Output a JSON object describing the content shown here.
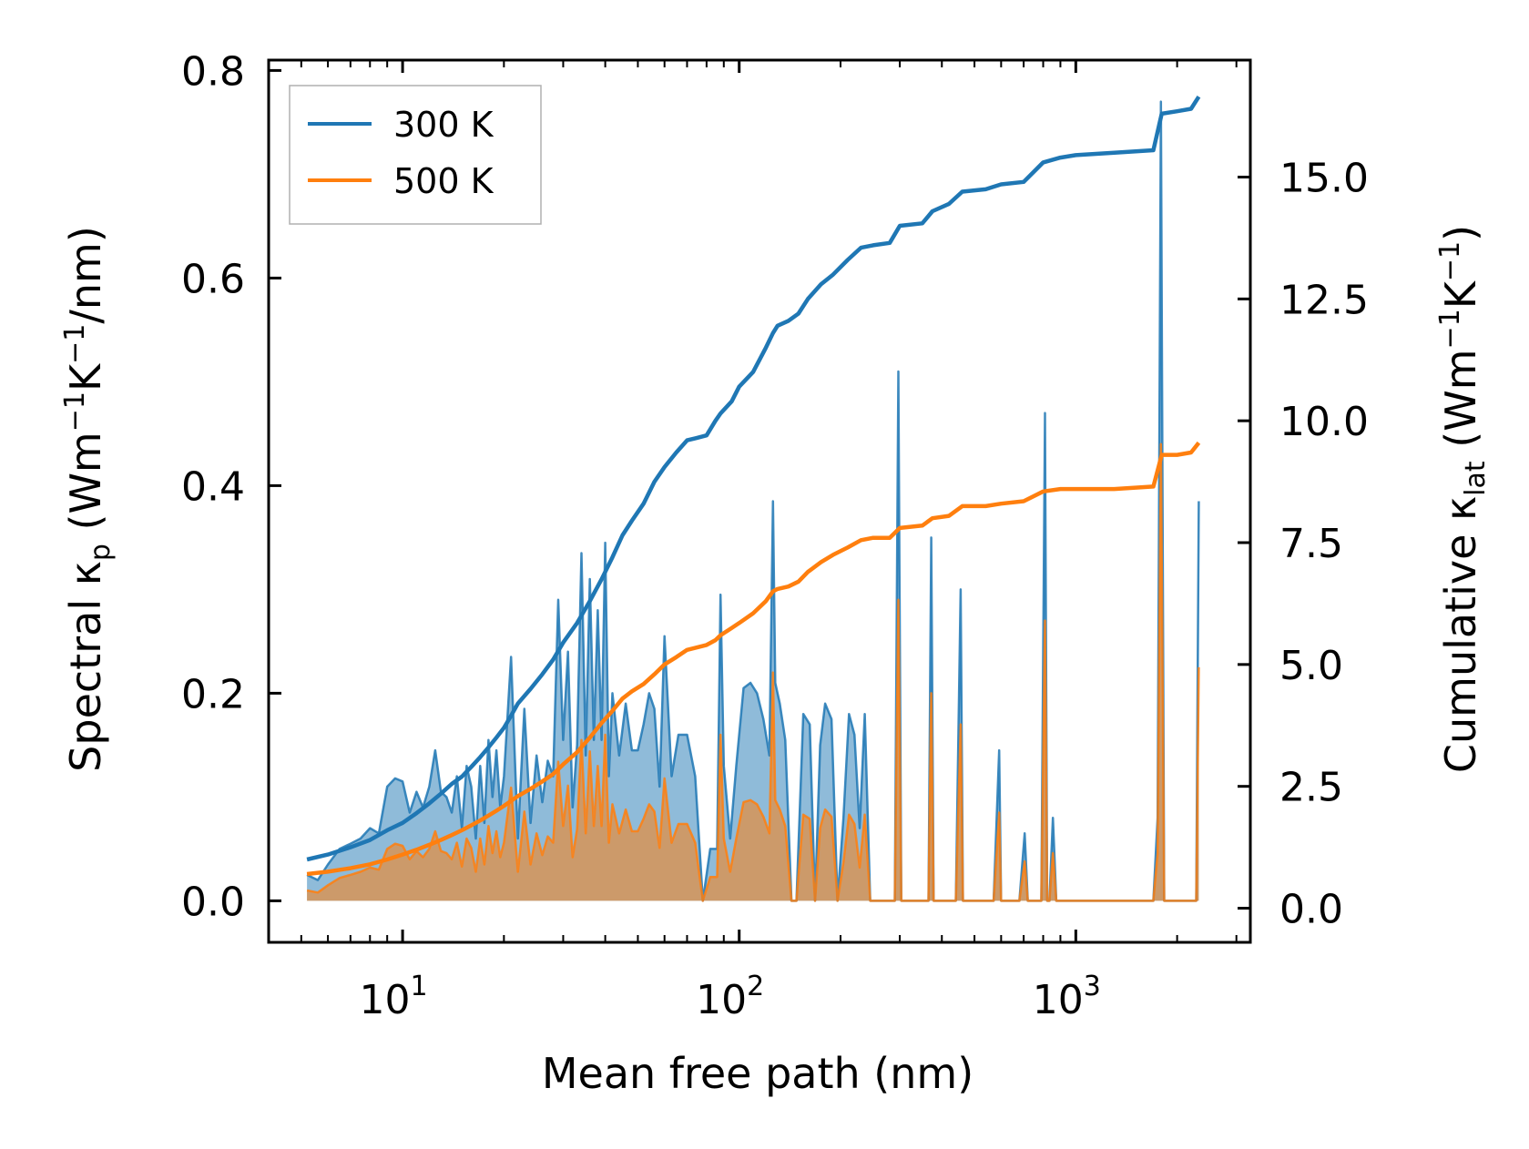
{
  "chart_data": {
    "type": "line",
    "x_scale": "log",
    "xlabel": "Mean free path (nm)",
    "ylabel_left": {
      "base": "Spectral κ",
      "sub": "p",
      "unit_pre": " (Wm",
      "exp1": "−1",
      "unit_mid": "K",
      "exp2": "−1",
      "unit_post": "/nm)"
    },
    "ylabel_right": {
      "base": "Cumulative κ",
      "sub": "lat",
      "unit_pre": " (Wm",
      "exp1": "−1",
      "unit_mid": "K",
      "exp2": "−1",
      "unit_post": ")"
    },
    "xlim": [
      4.0,
      3300
    ],
    "ylim_left": [
      -0.04,
      0.81
    ],
    "ylim_right": [
      -0.7,
      17.4
    ],
    "x_ticks": [
      {
        "value": 10,
        "base": "10",
        "exp": "1"
      },
      {
        "value": 100,
        "base": "10",
        "exp": "2"
      },
      {
        "value": 1000,
        "base": "10",
        "exp": "3"
      }
    ],
    "y_left_ticks": [
      {
        "value": 0.0,
        "label": "0.0"
      },
      {
        "value": 0.2,
        "label": "0.2"
      },
      {
        "value": 0.4,
        "label": "0.4"
      },
      {
        "value": 0.6,
        "label": "0.6"
      },
      {
        "value": 0.8,
        "label": "0.8"
      }
    ],
    "y_right_ticks": [
      {
        "value": 0.0,
        "label": "0.0"
      },
      {
        "value": 2.5,
        "label": "2.5"
      },
      {
        "value": 5.0,
        "label": "5.0"
      },
      {
        "value": 7.5,
        "label": "7.5"
      },
      {
        "value": 10.0,
        "label": "10.0"
      },
      {
        "value": 12.5,
        "label": "12.5"
      },
      {
        "value": 15.0,
        "label": "15.0"
      }
    ],
    "legend": {
      "position": "top-left",
      "entries": [
        "300 K",
        "500 K"
      ]
    },
    "colors": {
      "300K": "#1f77b4",
      "500K": "#ff7f0e",
      "fill300": "#1f77b4",
      "fill500": "#ff7f0e"
    },
    "spectral_series": [
      {
        "name": "300 K spectral",
        "x": [
          5.2,
          5.6,
          6.0,
          6.5,
          7.0,
          7.5,
          8.0,
          8.5,
          9.0,
          9.5,
          10.0,
          10.5,
          11.0,
          11.5,
          12.0,
          12.5,
          13.0,
          13.5,
          14.0,
          14.5,
          15.0,
          15.5,
          16.0,
          16.5,
          17.0,
          17.5,
          18.0,
          18.5,
          19.0,
          19.5,
          20.0,
          21.0,
          22.0,
          23.0,
          24.0,
          25.0,
          26.0,
          27.0,
          28.0,
          29.0,
          30.0,
          31.0,
          32.0,
          33.0,
          34.0,
          35.0,
          36.0,
          37.0,
          38.0,
          39.0,
          40.0,
          41.0,
          42.0,
          44.0,
          46.0,
          48.0,
          50.0,
          52.0,
          54.0,
          56.0,
          58.0,
          60.0,
          63.0,
          66.0,
          70.0,
          74.0,
          78.0,
          82.0,
          86.0,
          88.0,
          90.0,
          94.0,
          98.0,
          103.0,
          108.0,
          113.0,
          118.0,
          123.0,
          126.0,
          128.0,
          132.0,
          137.0,
          143.0,
          148.0,
          155.0,
          162.0,
          168.0,
          174.0,
          180.0,
          188.0,
          196.0,
          204.0,
          212.0,
          220.0,
          228.0,
          236.0,
          245.0,
          255.0,
          265.0,
          280.0,
          290.0,
          297.0,
          303.0,
          310.0,
          330.0,
          365.0,
          372.0,
          378.0,
          385.0,
          400.0,
          440.0,
          455.0,
          462.0,
          470.0,
          490.0,
          570.0,
          592.0,
          600.0,
          610.0,
          680.0,
          705.0,
          720.0,
          760.0,
          790.0,
          810.0,
          822.0,
          835.0,
          855.0,
          875.0,
          895.0,
          930.0,
          1000.0,
          1200.0,
          1500.0,
          1650.0,
          1700.0,
          1750.0,
          1790.0,
          1830.0,
          1870.0,
          2000.0,
          2200.0,
          2280.0,
          2320.0
        ],
        "y": [
          0.025,
          0.02,
          0.035,
          0.05,
          0.055,
          0.06,
          0.07,
          0.065,
          0.11,
          0.118,
          0.115,
          0.085,
          0.105,
          0.09,
          0.11,
          0.145,
          0.105,
          0.1,
          0.085,
          0.12,
          0.07,
          0.13,
          0.11,
          0.06,
          0.13,
          0.075,
          0.155,
          0.1,
          0.145,
          0.09,
          0.12,
          0.235,
          0.06,
          0.185,
          0.075,
          0.14,
          0.095,
          0.135,
          0.12,
          0.29,
          0.155,
          0.24,
          0.09,
          0.15,
          0.335,
          0.14,
          0.31,
          0.155,
          0.28,
          0.155,
          0.345,
          0.12,
          0.2,
          0.14,
          0.19,
          0.145,
          0.145,
          0.17,
          0.2,
          0.185,
          0.11,
          0.255,
          0.12,
          0.16,
          0.16,
          0.12,
          0.0,
          0.05,
          0.05,
          0.295,
          0.13,
          0.06,
          0.13,
          0.205,
          0.21,
          0.2,
          0.175,
          0.14,
          0.385,
          0.21,
          0.19,
          0.155,
          0.0,
          0.0,
          0.18,
          0.17,
          0.0,
          0.15,
          0.19,
          0.175,
          0.0,
          0.08,
          0.18,
          0.16,
          0.07,
          0.18,
          0.0,
          0.0,
          0.0,
          0.0,
          0.0,
          0.51,
          0.0,
          0.0,
          0.0,
          0.0,
          0.35,
          0.0,
          0.0,
          0.0,
          0.0,
          0.3,
          0.0,
          0.0,
          0.0,
          0.0,
          0.145,
          0.0,
          0.0,
          0.0,
          0.065,
          0.0,
          0.0,
          0.0,
          0.47,
          0.0,
          0.0,
          0.08,
          0.0,
          0.0,
          0.0,
          0.0,
          0.0,
          0.0,
          0.0,
          0.0,
          0.08,
          0.77,
          0.0,
          0.0,
          0.0,
          0.0,
          0.0,
          0.385
        ]
      },
      {
        "name": "500 K spectral",
        "x": [
          5.2,
          5.6,
          6.0,
          6.5,
          7.0,
          7.5,
          8.0,
          8.5,
          9.0,
          9.5,
          10.0,
          10.5,
          11.0,
          11.5,
          12.0,
          12.5,
          13.0,
          13.5,
          14.0,
          14.5,
          15.0,
          15.5,
          16.0,
          16.5,
          17.0,
          17.5,
          18.0,
          18.5,
          19.0,
          19.5,
          20.0,
          21.0,
          22.0,
          23.0,
          24.0,
          25.0,
          26.0,
          27.0,
          28.0,
          29.0,
          30.0,
          31.0,
          32.0,
          33.0,
          34.0,
          35.0,
          36.0,
          37.0,
          38.0,
          39.0,
          40.0,
          41.0,
          42.0,
          44.0,
          46.0,
          48.0,
          50.0,
          52.0,
          54.0,
          56.0,
          58.0,
          60.0,
          63.0,
          66.0,
          70.0,
          74.0,
          78.0,
          82.0,
          86.0,
          88.0,
          90.0,
          94.0,
          98.0,
          103.0,
          108.0,
          113.0,
          118.0,
          123.0,
          126.0,
          128.0,
          132.0,
          137.0,
          143.0,
          148.0,
          155.0,
          162.0,
          168.0,
          174.0,
          180.0,
          188.0,
          196.0,
          204.0,
          212.0,
          220.0,
          228.0,
          236.0,
          245.0,
          255.0,
          265.0,
          280.0,
          290.0,
          297.0,
          303.0,
          310.0,
          330.0,
          365.0,
          372.0,
          378.0,
          385.0,
          400.0,
          440.0,
          455.0,
          462.0,
          470.0,
          490.0,
          570.0,
          592.0,
          600.0,
          610.0,
          680.0,
          705.0,
          720.0,
          760.0,
          790.0,
          810.0,
          822.0,
          835.0,
          855.0,
          875.0,
          895.0,
          930.0,
          1000.0,
          1200.0,
          1500.0,
          1650.0,
          1700.0,
          1750.0,
          1790.0,
          1830.0,
          1870.0,
          2000.0,
          2200.0,
          2280.0,
          2320.0
        ],
        "y": [
          0.01,
          0.008,
          0.015,
          0.022,
          0.025,
          0.028,
          0.032,
          0.03,
          0.05,
          0.055,
          0.053,
          0.04,
          0.048,
          0.042,
          0.05,
          0.067,
          0.048,
          0.046,
          0.04,
          0.056,
          0.033,
          0.06,
          0.051,
          0.028,
          0.06,
          0.035,
          0.072,
          0.046,
          0.067,
          0.042,
          0.056,
          0.109,
          0.028,
          0.086,
          0.035,
          0.065,
          0.044,
          0.062,
          0.056,
          0.134,
          0.072,
          0.111,
          0.042,
          0.069,
          0.155,
          0.065,
          0.144,
          0.072,
          0.13,
          0.072,
          0.16,
          0.056,
          0.093,
          0.065,
          0.088,
          0.067,
          0.067,
          0.079,
          0.093,
          0.086,
          0.051,
          0.118,
          0.056,
          0.074,
          0.074,
          0.056,
          0.0,
          0.023,
          0.023,
          0.16,
          0.06,
          0.028,
          0.06,
          0.095,
          0.097,
          0.093,
          0.081,
          0.065,
          0.22,
          0.097,
          0.088,
          0.072,
          0.0,
          0.0,
          0.083,
          0.079,
          0.0,
          0.07,
          0.088,
          0.081,
          0.0,
          0.037,
          0.083,
          0.074,
          0.032,
          0.083,
          0.0,
          0.0,
          0.0,
          0.0,
          0.0,
          0.29,
          0.0,
          0.0,
          0.0,
          0.0,
          0.2,
          0.0,
          0.0,
          0.0,
          0.0,
          0.17,
          0.0,
          0.0,
          0.0,
          0.0,
          0.085,
          0.0,
          0.0,
          0.0,
          0.038,
          0.0,
          0.0,
          0.0,
          0.27,
          0.0,
          0.0,
          0.046,
          0.0,
          0.0,
          0.0,
          0.0,
          0.0,
          0.0,
          0.0,
          0.0,
          0.046,
          0.44,
          0.0,
          0.0,
          0.0,
          0.0,
          0.0,
          0.225
        ]
      }
    ],
    "cumulative_series": [
      {
        "name": "300 K",
        "x": [
          5.2,
          6.0,
          7.0,
          8.0,
          9.0,
          10.0,
          11.0,
          12.0,
          13.0,
          14.0,
          15.0,
          16.0,
          17.0,
          18.0,
          19.0,
          20.0,
          21.0,
          22.0,
          24.0,
          26.0,
          28.0,
          30.0,
          33.0,
          36.0,
          39.0,
          42.0,
          45.0,
          48.0,
          52.0,
          56.0,
          60.0,
          65.0,
          70.0,
          75.0,
          80.0,
          85.0,
          88.0,
          95.0,
          100.0,
          110.0,
          120.0,
          126.0,
          130.0,
          140.0,
          150.0,
          160.0,
          175.0,
          190.0,
          210.0,
          230.0,
          250.0,
          280.0,
          300.0,
          350.0,
          375.0,
          420.0,
          460.0,
          540.0,
          600.0,
          700.0,
          800.0,
          900.0,
          1000.0,
          1300.0,
          1700.0,
          1800.0,
          2000.0,
          2200.0,
          2320.0
        ],
        "y": [
          1.0,
          1.1,
          1.25,
          1.4,
          1.6,
          1.75,
          1.95,
          2.15,
          2.35,
          2.55,
          2.7,
          2.9,
          3.1,
          3.3,
          3.5,
          3.7,
          3.95,
          4.2,
          4.5,
          4.8,
          5.1,
          5.45,
          5.85,
          6.3,
          6.75,
          7.2,
          7.65,
          7.95,
          8.3,
          8.75,
          9.05,
          9.35,
          9.6,
          9.65,
          9.7,
          10.0,
          10.15,
          10.4,
          10.7,
          11.0,
          11.5,
          11.8,
          11.95,
          12.05,
          12.2,
          12.5,
          12.8,
          13.0,
          13.3,
          13.55,
          13.6,
          13.65,
          14.0,
          14.05,
          14.3,
          14.45,
          14.7,
          14.75,
          14.85,
          14.9,
          15.3,
          15.4,
          15.45,
          15.5,
          15.55,
          16.3,
          16.35,
          16.4,
          16.65
        ]
      },
      {
        "name": "500 K",
        "x": [
          5.2,
          6.0,
          7.0,
          8.0,
          9.0,
          10.0,
          11.0,
          12.0,
          13.0,
          14.0,
          15.0,
          16.0,
          17.0,
          18.0,
          19.0,
          20.0,
          21.0,
          22.0,
          24.0,
          26.0,
          28.0,
          30.0,
          33.0,
          36.0,
          39.0,
          42.0,
          45.0,
          48.0,
          52.0,
          56.0,
          60.0,
          65.0,
          70.0,
          75.0,
          80.0,
          85.0,
          88.0,
          95.0,
          100.0,
          110.0,
          120.0,
          126.0,
          130.0,
          140.0,
          150.0,
          160.0,
          175.0,
          190.0,
          210.0,
          230.0,
          250.0,
          280.0,
          300.0,
          350.0,
          375.0,
          420.0,
          460.0,
          540.0,
          600.0,
          700.0,
          800.0,
          900.0,
          1000.0,
          1300.0,
          1700.0,
          1800.0,
          2000.0,
          2200.0,
          2320.0
        ],
        "y": [
          0.7,
          0.75,
          0.82,
          0.9,
          1.0,
          1.1,
          1.2,
          1.3,
          1.4,
          1.5,
          1.6,
          1.7,
          1.8,
          1.9,
          2.0,
          2.1,
          2.2,
          2.3,
          2.45,
          2.6,
          2.75,
          2.95,
          3.2,
          3.5,
          3.8,
          4.05,
          4.3,
          4.45,
          4.6,
          4.8,
          5.0,
          5.15,
          5.3,
          5.35,
          5.4,
          5.5,
          5.6,
          5.75,
          5.85,
          6.05,
          6.3,
          6.5,
          6.55,
          6.6,
          6.7,
          6.9,
          7.1,
          7.25,
          7.4,
          7.55,
          7.6,
          7.6,
          7.8,
          7.85,
          8.0,
          8.05,
          8.25,
          8.25,
          8.3,
          8.35,
          8.55,
          8.6,
          8.6,
          8.6,
          8.65,
          9.3,
          9.3,
          9.35,
          9.55
        ]
      }
    ]
  }
}
